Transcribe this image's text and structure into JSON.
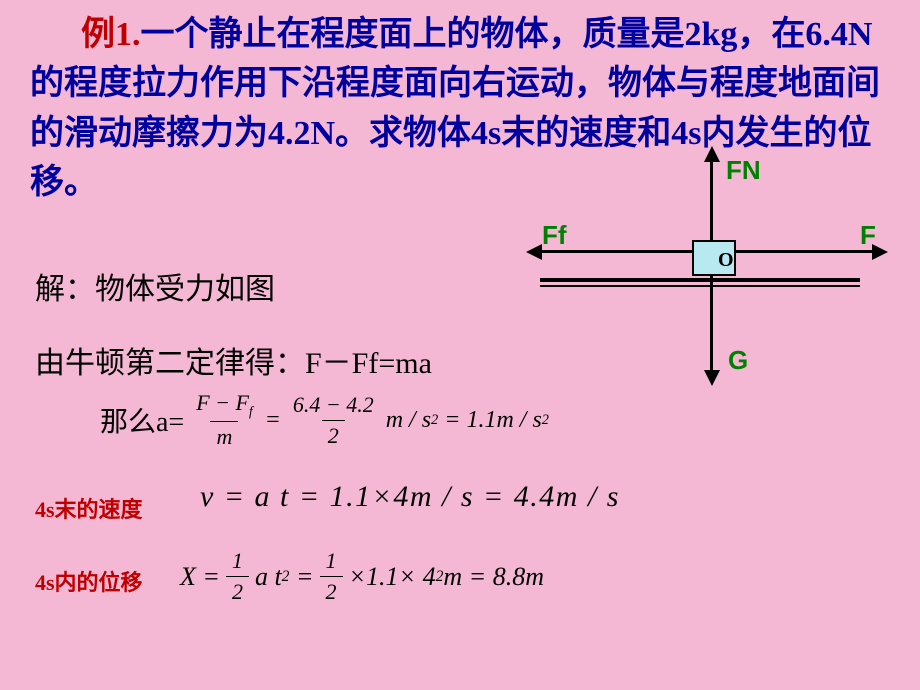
{
  "problem": {
    "head": "例1.",
    "text_full": "一个静止在程度面上的物体，质量是2kg，在6.4N的程度拉力作用下沿程度面向右运动，物体与程度地面间的滑动摩擦力为4.2N。求物体4s末的速度和4s内发生的位移。"
  },
  "solution": {
    "line1": "解：物体受力如图",
    "line2": "由牛顿第二定律得：F－Ff=ma",
    "then": "那么a=",
    "frac1_num": "F − F",
    "frac1_num_sub": "f",
    "frac1_den": "m",
    "frac2_num": "6.4 − 4.2",
    "frac2_den": "2",
    "a_result": "= 1.1m / s",
    "ms2": "m / s",
    "label_speed": "4s末的速度",
    "eq_speed": "v = a t = 1.1×4m / s = 4.4m / s",
    "label_disp": "4s内的位移",
    "eq_disp_X": "X =",
    "eq_disp_mid": "a t",
    "eq_disp_num": "×1.1× 4",
    "eq_disp_end": "m = 8.8m"
  },
  "fbd": {
    "FN": "FN",
    "Ff": "Ff",
    "F": "F",
    "G": "G",
    "O": "O"
  },
  "style": {
    "background_color": "#f4b8d4",
    "problem_color": "#0000a0",
    "head_color": "#c00000",
    "label_color": "#c00000",
    "force_label_color": "#008000",
    "box_fill": "#b8e8f0",
    "problem_fontsize": 34,
    "solution_fontsize": 30,
    "math_fontsize": 26
  }
}
